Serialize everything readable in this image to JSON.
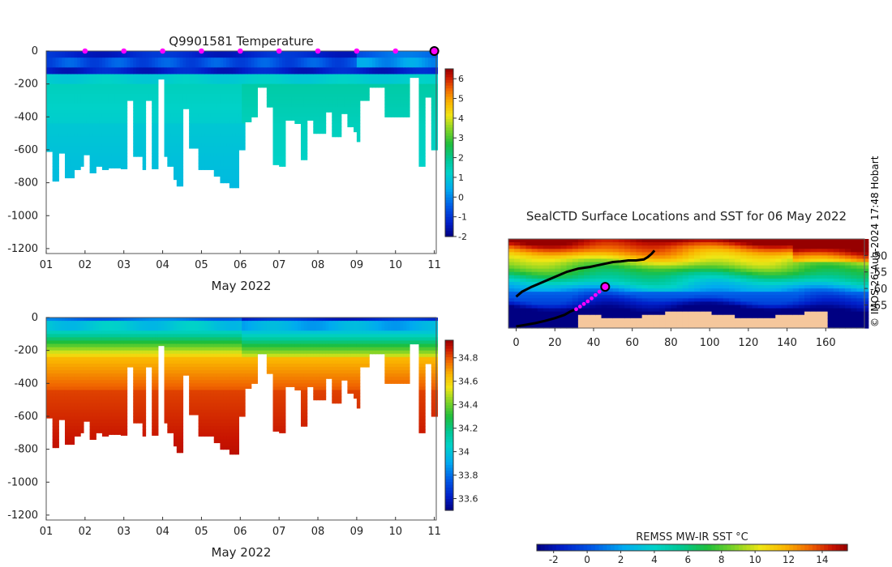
{
  "chart_data": [
    {
      "type": "heatmap",
      "title": "Q9901581  Temperature",
      "xlabel": "May 2022",
      "ylabel": "",
      "xlim": [
        1,
        11.05
      ],
      "ylim": [
        -1230,
        0
      ],
      "x_ticks": [
        "01",
        "02",
        "03",
        "04",
        "05",
        "06",
        "07",
        "08",
        "09",
        "10",
        "11"
      ],
      "y_ticks": [
        0,
        -200,
        -400,
        -600,
        -800,
        -1000,
        -1200
      ],
      "colorbar": {
        "min": -2,
        "max": 6.5,
        "ticks": [
          6,
          5,
          4,
          3,
          2,
          1,
          0,
          -1,
          -2
        ]
      },
      "surface_markers_days": [
        2,
        3,
        4,
        5,
        6,
        7,
        8,
        9,
        10
      ],
      "last_position_day": 11,
      "max_depth_profile": [
        [
          1.0,
          -610
        ],
        [
          1.15,
          -790
        ],
        [
          1.3,
          -620
        ],
        [
          1.45,
          -770
        ],
        [
          1.7,
          -720
        ],
        [
          1.85,
          -700
        ],
        [
          2.0,
          -630
        ],
        [
          2.15,
          -740
        ],
        [
          2.3,
          -700
        ],
        [
          2.45,
          -720
        ],
        [
          2.6,
          -710
        ],
        [
          2.9,
          -715
        ],
        [
          3.1,
          -300
        ],
        [
          3.25,
          -640
        ],
        [
          3.45,
          -720
        ],
        [
          3.6,
          -300
        ],
        [
          3.75,
          -715
        ],
        [
          3.9,
          -170
        ],
        [
          4.05,
          -640
        ],
        [
          4.15,
          -700
        ],
        [
          4.25,
          -780
        ],
        [
          4.35,
          -820
        ],
        [
          4.5,
          -350
        ],
        [
          4.7,
          -590
        ],
        [
          4.9,
          -720
        ],
        [
          5.1,
          -720
        ],
        [
          5.3,
          -760
        ],
        [
          5.5,
          -800
        ],
        [
          5.7,
          -830
        ],
        [
          5.95,
          -600
        ],
        [
          6.1,
          -430
        ],
        [
          6.25,
          -400
        ],
        [
          6.45,
          -220
        ],
        [
          6.7,
          -340
        ],
        [
          6.85,
          -690
        ],
        [
          7.0,
          -700
        ],
        [
          7.2,
          -420
        ],
        [
          7.4,
          -440
        ],
        [
          7.55,
          -660
        ],
        [
          7.7,
          -420
        ],
        [
          7.85,
          -500
        ],
        [
          8.0,
          -500
        ],
        [
          8.2,
          -370
        ],
        [
          8.4,
          -520
        ],
        [
          8.6,
          -380
        ],
        [
          8.75,
          -460
        ],
        [
          8.9,
          -490
        ],
        [
          9.0,
          -550
        ],
        [
          9.1,
          -300
        ],
        [
          9.3,
          -220
        ],
        [
          9.7,
          -400
        ],
        [
          10.1,
          -400
        ],
        [
          10.4,
          -160
        ],
        [
          10.6,
          -700
        ],
        [
          10.75,
          -280
        ],
        [
          10.95,
          -600
        ],
        [
          11.05,
          -680
        ]
      ]
    },
    {
      "type": "heatmap",
      "title": "",
      "xlabel": "May 2022",
      "ylabel": "",
      "xlim": [
        1,
        11.05
      ],
      "ylim": [
        -1230,
        0
      ],
      "x_ticks": [
        "01",
        "02",
        "03",
        "04",
        "05",
        "06",
        "07",
        "08",
        "09",
        "10",
        "11"
      ],
      "y_ticks": [
        0,
        -200,
        -400,
        -600,
        -800,
        -1000,
        -1200
      ],
      "colorbar": {
        "min": 33.5,
        "max": 34.95,
        "ticks": [
          34.8,
          34.6,
          34.4,
          34.2,
          34,
          33.8,
          33.6
        ]
      },
      "max_depth_profile": "same as temperature section"
    },
    {
      "type": "heatmap",
      "title": "SealCTD Surface Locations and SST for 06 May 2022",
      "xlim": [
        -4,
        180
      ],
      "ylim": [
        -72,
        -45
      ],
      "x_ticks": [
        0,
        20,
        40,
        60,
        80,
        100,
        120,
        140,
        160
      ],
      "y_ticks": [
        -50,
        -55,
        -60,
        -65
      ],
      "track_lon": [
        0,
        3,
        8,
        14,
        20,
        26,
        32,
        38,
        42,
        46,
        50,
        54,
        58,
        62,
        66,
        68,
        70,
        71.5
      ],
      "track_lat": [
        -62.5,
        -61,
        -59.5,
        -58,
        -56.5,
        -55,
        -54,
        -53.5,
        -53,
        -52.5,
        -52,
        -51.8,
        -51.5,
        -51.5,
        -51.2,
        -50.5,
        -49.5,
        -48.5
      ],
      "track_lon_south": [
        0,
        5,
        10,
        15,
        20,
        25,
        28,
        30
      ],
      "track_lat_south": [
        -71.5,
        -71,
        -70.5,
        -69.8,
        -69,
        -68,
        -67,
        -66.5
      ],
      "surface_points_lon": [
        31,
        33,
        35,
        37,
        39,
        41,
        43,
        45
      ],
      "surface_points_lat": [
        -66.3,
        -65.5,
        -64.7,
        -63.9,
        -63,
        -62,
        -61,
        -60.3
      ],
      "current_position": {
        "lon": 46,
        "lat": -59.5
      },
      "colorbar": {
        "label": "REMSS MW-IR SST °C",
        "min": -3,
        "max": 15.5,
        "ticks": [
          -2,
          0,
          2,
          4,
          6,
          8,
          10,
          12,
          14
        ]
      }
    }
  ],
  "watermark": "© IMOS 26-Aug-2024 17:48 Hobart",
  "colors": {
    "land": "#f5c79c",
    "surface_marker": "#ff00ff",
    "track": "#000000"
  }
}
